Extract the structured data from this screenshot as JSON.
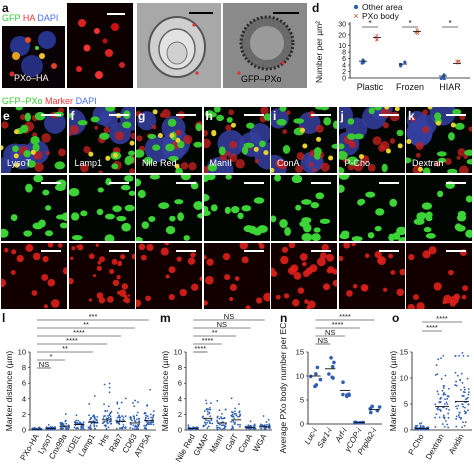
{
  "panel_a": {
    "letter": "a",
    "legend": [
      {
        "text": "GFP",
        "color": "#33cc33"
      },
      {
        "text": "HA",
        "color": "#ff3333"
      },
      {
        "text": "DAPI",
        "color": "#4a6cff"
      }
    ],
    "overlay_label": "PXo–HA"
  },
  "panel_b": {
    "letter": "b"
  },
  "panel_c": {
    "letter": "c",
    "overlay_label": "GFP–PXo"
  },
  "panel_d": {
    "letter": "d",
    "legend": [
      {
        "text": "Other area",
        "color": "#2f5fb5"
      },
      {
        "text": "PXo body",
        "color": "#d9422b"
      }
    ],
    "sig": [
      "*",
      "*",
      "*"
    ]
  },
  "row_legend": [
    {
      "text": "GFP–PXo",
      "color": "#33cc33"
    },
    {
      "text": "Marker",
      "color": "#ff3333"
    },
    {
      "text": "DAPI",
      "color": "#4a6cff"
    }
  ],
  "marker_panels": [
    {
      "letter": "e",
      "name": "LysoT"
    },
    {
      "letter": "f",
      "name": "Lamp1"
    },
    {
      "letter": "g",
      "name": "Nile Red"
    },
    {
      "letter": "h",
      "name": "ManII"
    },
    {
      "letter": "i",
      "name": "ConA"
    },
    {
      "letter": "j",
      "name": "P-Cho"
    },
    {
      "letter": "k",
      "name": "Dextran"
    }
  ],
  "panel_l": {
    "letter": "l",
    "sig": [
      {
        "label": "***"
      },
      {
        "label": "**"
      },
      {
        "label": "****"
      },
      {
        "label": "****"
      },
      {
        "label": "**"
      },
      {
        "label": "*"
      },
      {
        "label": "NS"
      }
    ]
  },
  "panel_m": {
    "letter": "m",
    "sig": [
      {
        "label": "NS"
      },
      {
        "label": "NS"
      },
      {
        "label": "**"
      },
      {
        "label": "****"
      },
      {
        "label": "****"
      }
    ]
  },
  "panel_n": {
    "letter": "n",
    "sig": [
      {
        "label": "****"
      },
      {
        "label": "****"
      },
      {
        "label": "NS"
      },
      {
        "label": "NS"
      }
    ]
  },
  "panel_o": {
    "letter": "o",
    "sig": [
      {
        "label": "****"
      },
      {
        "label": "****"
      }
    ]
  },
  "chart_data": [
    {
      "type": "scatter",
      "panel": "d",
      "categories": [
        "Plastic",
        "Frozen",
        "HIAR"
      ],
      "ylabel": "Number per µm²",
      "yticks": [
        0,
        2,
        4,
        6,
        8,
        10,
        20,
        30
      ],
      "ylim": [
        0,
        30
      ],
      "axis_break": true,
      "series": [
        {
          "name": "Other area",
          "values": [
            5.2,
            4.3,
            0.6
          ]
        },
        {
          "name": "PXo body",
          "values": [
            17.5,
            23,
            4.5
          ]
        }
      ],
      "legend": "top"
    },
    {
      "type": "scatter",
      "panel": "l",
      "categories": [
        "PXo-HA",
        "LysoT",
        "Cnx99a",
        "KDEL",
        "Lamp1",
        "Hrs",
        "Rab7",
        "CD63",
        "ATP5A"
      ],
      "ylabel": "Marker distance (µm)",
      "yticks": [
        0,
        2,
        4,
        6,
        8,
        10
      ],
      "ylim": [
        0,
        10
      ],
      "series": [
        {
          "values_median": [
            0.1,
            0.2,
            0.5,
            0.7,
            1.0,
            1.3,
            1.1,
            0.9,
            1.2
          ]
        }
      ]
    },
    {
      "type": "scatter",
      "panel": "m",
      "categories": [
        "Nile Red",
        "GMAP",
        "ManII",
        "GalT",
        "ConA",
        "WGA"
      ],
      "ylabel": "Marker distance (µm)",
      "yticks": [
        0,
        2,
        4,
        6,
        8,
        10
      ],
      "ylim": [
        0,
        10
      ],
      "series": [
        {
          "values_median": [
            0.2,
            1.5,
            0.9,
            1.3,
            0.3,
            0.4
          ]
        }
      ]
    },
    {
      "type": "scatter",
      "panel": "n",
      "categories": [
        "Luc-i",
        "Sar1-i",
        "Arf-i",
        "γCOP-i",
        "Pnpla2-i"
      ],
      "ylabel": "Average PXo body number per EC",
      "yticks": [
        0,
        5,
        10,
        15
      ],
      "ylim": [
        0,
        15
      ],
      "series": [
        {
          "values": [
            10,
            11.5,
            7,
            0.3,
            3
          ]
        }
      ]
    },
    {
      "type": "scatter",
      "panel": "o",
      "categories": [
        "P-Cho",
        "Dextran",
        "Avidin"
      ],
      "ylabel": "Marker distance (µm)",
      "yticks": [
        0,
        5,
        10,
        15
      ],
      "ylim": [
        0,
        15
      ],
      "series": [
        {
          "values_median": [
            0.3,
            4.5,
            5.5
          ]
        }
      ]
    }
  ]
}
